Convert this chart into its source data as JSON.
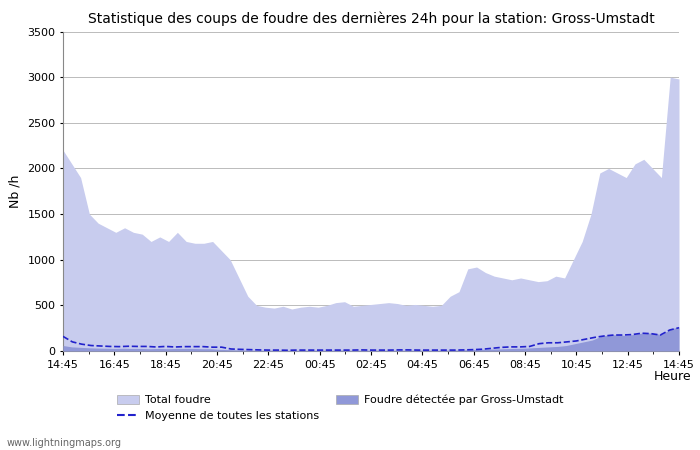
{
  "title": "Statistique des coups de foudre des dernières 24h pour la station: Gross-Umstadt",
  "ylabel": "Nb /h",
  "xlabel": "Heure",
  "watermark": "www.lightningmaps.org",
  "ylim": [
    0,
    3500
  ],
  "yticks": [
    0,
    500,
    1000,
    1500,
    2000,
    2500,
    3000,
    3500
  ],
  "xtick_labels": [
    "14:45",
    "16:45",
    "18:45",
    "20:45",
    "22:45",
    "00:45",
    "02:45",
    "04:45",
    "06:45",
    "08:45",
    "10:45",
    "12:45",
    "14:45"
  ],
  "total_foudre_color": "#c8ccee",
  "detected_color": "#9098d8",
  "moyenne_color": "#2222cc",
  "bg_color": "#f8f8f8",
  "total_foudre": [
    2200,
    2050,
    1900,
    1500,
    1400,
    1350,
    1300,
    1350,
    1300,
    1280,
    1200,
    1250,
    1200,
    1300,
    1200,
    1180,
    1180,
    1200,
    1100,
    1000,
    800,
    600,
    500,
    480,
    470,
    490,
    460,
    480,
    490,
    480,
    500,
    530,
    540,
    490,
    500,
    510,
    520,
    530,
    520,
    500,
    510,
    500,
    490,
    500,
    600,
    650,
    900,
    920,
    860,
    820,
    800,
    780,
    800,
    780,
    760,
    770,
    820,
    800,
    1000,
    1200,
    1500,
    1950,
    2000,
    1950,
    1900,
    2050,
    2100,
    2000,
    1900,
    3000,
    2980
  ],
  "detected": [
    60,
    45,
    40,
    35,
    32,
    30,
    28,
    30,
    28,
    28,
    25,
    28,
    25,
    28,
    28,
    28,
    25,
    25,
    18,
    15,
    12,
    10,
    8,
    8,
    8,
    8,
    8,
    8,
    8,
    8,
    8,
    8,
    10,
    8,
    8,
    8,
    8,
    8,
    8,
    8,
    8,
    8,
    8,
    8,
    8,
    10,
    12,
    15,
    18,
    20,
    22,
    25,
    28,
    30,
    35,
    40,
    45,
    50,
    60,
    80,
    100,
    120,
    160,
    180,
    175,
    170,
    185,
    200,
    195,
    180,
    240,
    265
  ],
  "moyenne": [
    160,
    100,
    75,
    60,
    55,
    50,
    48,
    52,
    50,
    50,
    44,
    50,
    44,
    48,
    48,
    48,
    42,
    42,
    22,
    18,
    15,
    12,
    10,
    10,
    8,
    10,
    10,
    10,
    10,
    10,
    10,
    10,
    12,
    10,
    10,
    10,
    12,
    12,
    10,
    10,
    10,
    10,
    10,
    12,
    15,
    20,
    30,
    40,
    45,
    45,
    50,
    80,
    90,
    90,
    100,
    110,
    130,
    150,
    165,
    175,
    175,
    180,
    195,
    190,
    175,
    230,
    255
  ],
  "n_total": 71,
  "n_detected": 72,
  "n_moyenne": 67
}
